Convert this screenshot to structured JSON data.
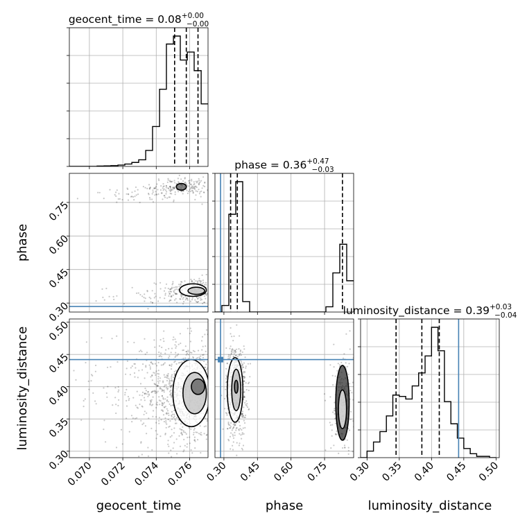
{
  "chart_data": {
    "type": "corner",
    "truth_color": "#4682b4",
    "parameters": [
      {
        "name": "geocent_time",
        "xlabel": "geocent_time",
        "range": [
          0.0688,
          0.0771
        ],
        "ticks": [
          0.07,
          0.072,
          0.074,
          0.076
        ],
        "tick_labels": [
          "0.070",
          "0.072",
          "0.074",
          "0.076"
        ],
        "title": {
          "main": "geocent_time = 0.08",
          "sup": "+0.00",
          "sub": "−0.00"
        },
        "quantiles": [
          0.0751,
          0.0758,
          0.0765
        ],
        "truth": null,
        "hist": {
          "edges": [
            0.0688,
            0.06922,
            0.06963,
            0.07005,
            0.07046,
            0.07088,
            0.07129,
            0.07171,
            0.07212,
            0.07254,
            0.07295,
            0.07337,
            0.07378,
            0.0742,
            0.07461,
            0.07503,
            0.07544,
            0.07586,
            0.07627,
            0.07669,
            0.0771
          ],
          "counts": [
            0,
            0,
            0,
            0,
            0.3,
            0.4,
            0.6,
            1,
            1.8,
            3,
            5,
            12,
            30,
            58,
            92,
            98,
            80,
            86,
            72,
            47
          ]
        }
      },
      {
        "name": "phase",
        "xlabel": "phase",
        "ylabel": "phase",
        "range": [
          0.26,
          0.88
        ],
        "ticks": [
          0.3,
          0.45,
          0.6,
          0.75
        ],
        "tick_labels": [
          "0.30",
          "0.45",
          "0.60",
          "0.75"
        ],
        "title": {
          "main": "phase = 0.36",
          "sup": "+0.47",
          "sub": "−0.03"
        },
        "quantiles": [
          0.33,
          0.36,
          0.83
        ],
        "truth": 0.285,
        "hist": {
          "edges": [
            0.26,
            0.291,
            0.322,
            0.353,
            0.384,
            0.415,
            0.446,
            0.477,
            0.508,
            0.539,
            0.57,
            0.601,
            0.632,
            0.663,
            0.694,
            0.725,
            0.756,
            0.787,
            0.818,
            0.849,
            0.88
          ],
          "counts": [
            0,
            5,
            75,
            100,
            8,
            0,
            0,
            0,
            0,
            0,
            0,
            0,
            0,
            0,
            0,
            0,
            4,
            30,
            52,
            24
          ]
        }
      },
      {
        "name": "luminosity_distance",
        "xlabel": "luminosity_distance",
        "ylabel": "luminosity_distance",
        "range": [
          0.29,
          0.505
        ],
        "ticks": [
          0.3,
          0.35,
          0.4,
          0.45,
          0.5
        ],
        "tick_labels": [
          "0.30",
          "0.35",
          "0.40",
          "0.45",
          "0.50"
        ],
        "title": {
          "main": "luminosity_distance = 0.39",
          "sup": "+0.03",
          "sub": "−0.04"
        },
        "quantiles": [
          0.345,
          0.385,
          0.412
        ],
        "truth": 0.442,
        "hist": {
          "edges": [
            0.29,
            0.3,
            0.31,
            0.32,
            0.33,
            0.34,
            0.35,
            0.36,
            0.37,
            0.38,
            0.39,
            0.4,
            0.41,
            0.42,
            0.43,
            0.44,
            0.45,
            0.46,
            0.47,
            0.48,
            0.49,
            0.5
          ],
          "counts": [
            0,
            5,
            12,
            20,
            32,
            48,
            47,
            45,
            55,
            65,
            78,
            100,
            82,
            43,
            26,
            15,
            7,
            3,
            1,
            1,
            0
          ]
        }
      }
    ],
    "scatter": [
      {
        "x": "geocent_time",
        "y": "phase",
        "blobs": [
          {
            "cx": 0.0762,
            "cy": 0.355,
            "sx": 0.0009,
            "sy": 0.03,
            "n": 260
          },
          {
            "cx": 0.0755,
            "cy": 0.82,
            "sx": 0.0009,
            "sy": 0.02,
            "n": 180
          },
          {
            "cx": 0.0735,
            "cy": 0.78,
            "sx": 0.0018,
            "sy": 0.018,
            "n": 60
          },
          {
            "cx": 0.0735,
            "cy": 0.33,
            "sx": 0.0015,
            "sy": 0.02,
            "n": 40
          }
        ],
        "contours": [
          {
            "cx": 0.0762,
            "cy": 0.358,
            "rx": 0.0008,
            "ry": 0.028
          },
          {
            "cx": 0.0764,
            "cy": 0.355,
            "rx": 0.0005,
            "ry": 0.016
          },
          {
            "cx": 0.0755,
            "cy": 0.82,
            "rx": 0.0003,
            "ry": 0.015
          }
        ]
      },
      {
        "x": "geocent_time",
        "y": "luminosity_distance",
        "blobs": [
          {
            "cx": 0.0758,
            "cy": 0.39,
            "sx": 0.0013,
            "sy": 0.04,
            "n": 900
          },
          {
            "cx": 0.0735,
            "cy": 0.4,
            "sx": 0.0025,
            "sy": 0.05,
            "n": 160
          }
        ],
        "contours": [
          {
            "cx": 0.0761,
            "cy": 0.39,
            "rx": 0.0011,
            "ry": 0.052
          },
          {
            "cx": 0.0763,
            "cy": 0.39,
            "rx": 0.0007,
            "ry": 0.032
          },
          {
            "cx": 0.0765,
            "cy": 0.4,
            "rx": 0.0004,
            "ry": 0.012
          }
        ]
      },
      {
        "x": "phase",
        "y": "luminosity_distance",
        "blobs": [
          {
            "cx": 0.355,
            "cy": 0.395,
            "sx": 0.022,
            "sy": 0.035,
            "n": 650
          },
          {
            "cx": 0.83,
            "cy": 0.37,
            "sx": 0.025,
            "sy": 0.04,
            "n": 220
          }
        ],
        "contours": [
          {
            "cx": 0.35,
            "cy": 0.395,
            "rx": 0.035,
            "ry": 0.05
          },
          {
            "cx": 0.355,
            "cy": 0.395,
            "rx": 0.02,
            "ry": 0.032
          },
          {
            "cx": 0.355,
            "cy": 0.4,
            "rx": 0.008,
            "ry": 0.01
          },
          {
            "cx": 0.83,
            "cy": 0.375,
            "rx": 0.03,
            "ry": 0.058
          },
          {
            "cx": 0.83,
            "cy": 0.365,
            "rx": 0.018,
            "ry": 0.03
          }
        ]
      }
    ]
  }
}
